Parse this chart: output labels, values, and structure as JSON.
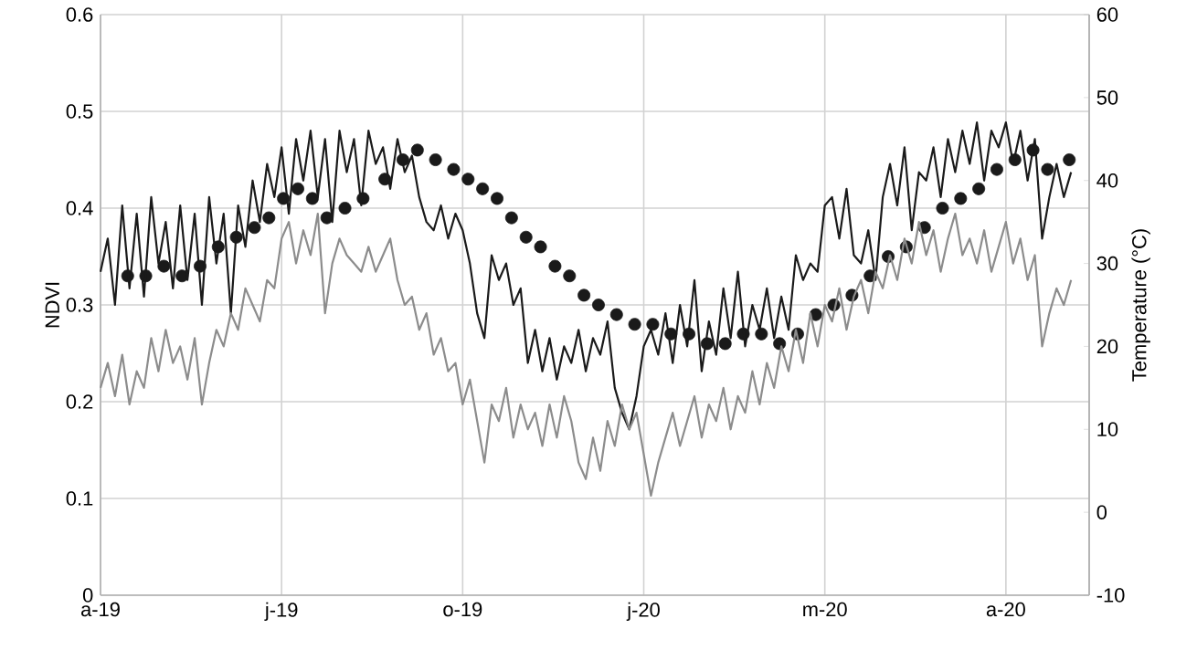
{
  "chart_data": {
    "type": "line",
    "ylabel": "NDVI",
    "y2label": "Temperature (°C)",
    "grid": true,
    "xlim": [
      "2019-04-01",
      "2020-09-28"
    ],
    "xticks": [
      {
        "value": "2019-04-01",
        "label": "a-19"
      },
      {
        "value": "2019-07-10",
        "label": "j-19"
      },
      {
        "value": "2019-10-18",
        "label": "o-19"
      },
      {
        "value": "2020-01-26",
        "label": "j-20"
      },
      {
        "value": "2020-05-05",
        "label": "m-20"
      },
      {
        "value": "2020-08-13",
        "label": "a-20"
      }
    ],
    "ylim": [
      0,
      0.6
    ],
    "yticks": [
      0,
      0.1,
      0.2,
      0.3,
      0.4,
      0.5,
      0.6
    ],
    "y2lim": [
      -10,
      60
    ],
    "y2ticks": [
      -10,
      0,
      10,
      20,
      30,
      40,
      50,
      60
    ],
    "series": [
      {
        "axis": "y2",
        "color": "#1a1a1a",
        "x": [
          "2019-04-01",
          "2019-04-05",
          "2019-04-09",
          "2019-04-13",
          "2019-04-17",
          "2019-04-21",
          "2019-04-25",
          "2019-04-29",
          "2019-05-03",
          "2019-05-07",
          "2019-05-11",
          "2019-05-15",
          "2019-05-19",
          "2019-05-23",
          "2019-05-27",
          "2019-05-31",
          "2019-06-04",
          "2019-06-08",
          "2019-06-12",
          "2019-06-16",
          "2019-06-20",
          "2019-06-24",
          "2019-06-28",
          "2019-07-02",
          "2019-07-06",
          "2019-07-10",
          "2019-07-14",
          "2019-07-18",
          "2019-07-22",
          "2019-07-26",
          "2019-07-30",
          "2019-08-03",
          "2019-08-07",
          "2019-08-11",
          "2019-08-15",
          "2019-08-19",
          "2019-08-23",
          "2019-08-27",
          "2019-08-31",
          "2019-09-04",
          "2019-09-08",
          "2019-09-12",
          "2019-09-16",
          "2019-09-20",
          "2019-09-24",
          "2019-09-28",
          "2019-10-02",
          "2019-10-06",
          "2019-10-10",
          "2019-10-14",
          "2019-10-18",
          "2019-10-22",
          "2019-10-26",
          "2019-10-30",
          "2019-11-03",
          "2019-11-07",
          "2019-11-11",
          "2019-11-15",
          "2019-11-19",
          "2019-11-23",
          "2019-11-27",
          "2019-12-01",
          "2019-12-05",
          "2019-12-09",
          "2019-12-13",
          "2019-12-17",
          "2019-12-21",
          "2019-12-25",
          "2019-12-29",
          "2020-01-02",
          "2020-01-06",
          "2020-01-10",
          "2020-01-14",
          "2020-01-18",
          "2020-01-22",
          "2020-01-26",
          "2020-01-30",
          "2020-02-03",
          "2020-02-07",
          "2020-02-11",
          "2020-02-15",
          "2020-02-19",
          "2020-02-23",
          "2020-02-27",
          "2020-03-02",
          "2020-03-06",
          "2020-03-10",
          "2020-03-14",
          "2020-03-18",
          "2020-03-22",
          "2020-03-26",
          "2020-03-30",
          "2020-04-03",
          "2020-04-07",
          "2020-04-11",
          "2020-04-15",
          "2020-04-19",
          "2020-04-23",
          "2020-04-27",
          "2020-05-01",
          "2020-05-05",
          "2020-05-09",
          "2020-05-13",
          "2020-05-17",
          "2020-05-21",
          "2020-05-25",
          "2020-05-29",
          "2020-06-02",
          "2020-06-06",
          "2020-06-10",
          "2020-06-14",
          "2020-06-18",
          "2020-06-22",
          "2020-06-26",
          "2020-06-30",
          "2020-07-04",
          "2020-07-08",
          "2020-07-12",
          "2020-07-16",
          "2020-07-20",
          "2020-07-24",
          "2020-07-28",
          "2020-08-01",
          "2020-08-05",
          "2020-08-09",
          "2020-08-13",
          "2020-08-17",
          "2020-08-21",
          "2020-08-25",
          "2020-08-29",
          "2020-09-02",
          "2020-09-06",
          "2020-09-10",
          "2020-09-14",
          "2020-09-18"
        ],
        "values": [
          29,
          33,
          25,
          37,
          27,
          36,
          26,
          38,
          30,
          35,
          27,
          37,
          28,
          36,
          25,
          38,
          30,
          36,
          24,
          37,
          32,
          40,
          35,
          42,
          38,
          44,
          36,
          45,
          40,
          46,
          38,
          45,
          35,
          46,
          41,
          45,
          37,
          46,
          42,
          44,
          39,
          45,
          41,
          43,
          38,
          35,
          34,
          37,
          33,
          36,
          34,
          30,
          24,
          21,
          31,
          28,
          30,
          25,
          27,
          18,
          22,
          17,
          21,
          16,
          20,
          18,
          22,
          17,
          21,
          19,
          23,
          15,
          12,
          10,
          14,
          20,
          22,
          19,
          24,
          18,
          25,
          20,
          28,
          17,
          23,
          19,
          27,
          21,
          29,
          20,
          25,
          22,
          27,
          21,
          26,
          22,
          31,
          28,
          30,
          29,
          37,
          38,
          33,
          39,
          31,
          30,
          34,
          28,
          38,
          42,
          37,
          44,
          34,
          41,
          40,
          44,
          38,
          45,
          41,
          46,
          42,
          47,
          40,
          46,
          44,
          47,
          42,
          46,
          40,
          45,
          33,
          38,
          42,
          38,
          41
        ]
      },
      {
        "axis": "y2",
        "color": "#8c8c8c",
        "x": [
          "2019-04-01",
          "2019-04-05",
          "2019-04-09",
          "2019-04-13",
          "2019-04-17",
          "2019-04-21",
          "2019-04-25",
          "2019-04-29",
          "2019-05-03",
          "2019-05-07",
          "2019-05-11",
          "2019-05-15",
          "2019-05-19",
          "2019-05-23",
          "2019-05-27",
          "2019-05-31",
          "2019-06-04",
          "2019-06-08",
          "2019-06-12",
          "2019-06-16",
          "2019-06-20",
          "2019-06-24",
          "2019-06-28",
          "2019-07-02",
          "2019-07-06",
          "2019-07-10",
          "2019-07-14",
          "2019-07-18",
          "2019-07-22",
          "2019-07-26",
          "2019-07-30",
          "2019-08-03",
          "2019-08-07",
          "2019-08-11",
          "2019-08-15",
          "2019-08-19",
          "2019-08-23",
          "2019-08-27",
          "2019-08-31",
          "2019-09-04",
          "2019-09-08",
          "2019-09-12",
          "2019-09-16",
          "2019-09-20",
          "2019-09-24",
          "2019-09-28",
          "2019-10-02",
          "2019-10-06",
          "2019-10-10",
          "2019-10-14",
          "2019-10-18",
          "2019-10-22",
          "2019-10-26",
          "2019-10-30",
          "2019-11-03",
          "2019-11-07",
          "2019-11-11",
          "2019-11-15",
          "2019-11-19",
          "2019-11-23",
          "2019-11-27",
          "2019-12-01",
          "2019-12-05",
          "2019-12-09",
          "2019-12-13",
          "2019-12-17",
          "2019-12-21",
          "2019-12-25",
          "2019-12-29",
          "2020-01-02",
          "2020-01-06",
          "2020-01-10",
          "2020-01-14",
          "2020-01-18",
          "2020-01-22",
          "2020-01-26",
          "2020-01-30",
          "2020-02-03",
          "2020-02-07",
          "2020-02-11",
          "2020-02-15",
          "2020-02-19",
          "2020-02-23",
          "2020-02-27",
          "2020-03-02",
          "2020-03-06",
          "2020-03-10",
          "2020-03-14",
          "2020-03-18",
          "2020-03-22",
          "2020-03-26",
          "2020-03-30",
          "2020-04-03",
          "2020-04-07",
          "2020-04-11",
          "2020-04-15",
          "2020-04-19",
          "2020-04-23",
          "2020-04-27",
          "2020-05-01",
          "2020-05-05",
          "2020-05-09",
          "2020-05-13",
          "2020-05-17",
          "2020-05-21",
          "2020-05-25",
          "2020-05-29",
          "2020-06-02",
          "2020-06-06",
          "2020-06-10",
          "2020-06-14",
          "2020-06-18",
          "2020-06-22",
          "2020-06-26",
          "2020-06-30",
          "2020-07-04",
          "2020-07-08",
          "2020-07-12",
          "2020-07-16",
          "2020-07-20",
          "2020-07-24",
          "2020-07-28",
          "2020-08-01",
          "2020-08-05",
          "2020-08-09",
          "2020-08-13",
          "2020-08-17",
          "2020-08-21",
          "2020-08-25",
          "2020-08-29",
          "2020-09-02",
          "2020-09-06",
          "2020-09-10",
          "2020-09-14",
          "2020-09-18"
        ],
        "values": [
          15,
          18,
          14,
          19,
          13,
          17,
          15,
          21,
          17,
          22,
          18,
          20,
          16,
          21,
          13,
          18,
          22,
          20,
          24,
          22,
          27,
          25,
          23,
          28,
          27,
          33,
          35,
          30,
          34,
          31,
          36,
          24,
          30,
          33,
          31,
          30,
          29,
          32,
          29,
          31,
          33,
          28,
          25,
          26,
          22,
          24,
          19,
          21,
          17,
          18,
          13,
          16,
          11,
          6,
          13,
          11,
          15,
          9,
          13,
          10,
          12,
          8,
          13,
          9,
          14,
          11,
          6,
          4,
          9,
          5,
          11,
          8,
          13,
          10,
          12,
          7,
          2,
          6,
          9,
          12,
          8,
          11,
          14,
          9,
          13,
          11,
          15,
          10,
          14,
          12,
          17,
          13,
          18,
          15,
          20,
          17,
          22,
          18,
          24,
          20,
          25,
          23,
          27,
          22,
          26,
          28,
          24,
          29,
          27,
          31,
          28,
          33,
          30,
          35,
          31,
          34,
          29,
          33,
          36,
          31,
          33,
          30,
          34,
          29,
          32,
          35,
          30,
          33,
          28,
          31,
          20,
          24,
          27,
          25,
          28
        ]
      },
      {
        "type": "scatter",
        "axis": "y",
        "marker": "circle",
        "color": "#1a1a1a",
        "x": [
          "2019-04-16",
          "2019-04-26",
          "2019-05-06",
          "2019-05-16",
          "2019-05-26",
          "2019-06-05",
          "2019-06-15",
          "2019-06-25",
          "2019-07-03",
          "2019-07-11",
          "2019-07-19",
          "2019-07-27",
          "2019-08-04",
          "2019-08-14",
          "2019-08-24",
          "2019-09-05",
          "2019-09-15",
          "2019-09-23",
          "2019-10-03",
          "2019-10-13",
          "2019-10-21",
          "2019-10-29",
          "2019-11-06",
          "2019-11-14",
          "2019-11-22",
          "2019-11-30",
          "2019-12-08",
          "2019-12-16",
          "2019-12-24",
          "2020-01-01",
          "2020-01-11",
          "2020-01-21",
          "2020-01-31",
          "2020-02-10",
          "2020-02-20",
          "2020-03-01",
          "2020-03-11",
          "2020-03-21",
          "2020-03-31",
          "2020-04-10",
          "2020-04-20",
          "2020-04-30",
          "2020-05-10",
          "2020-05-20",
          "2020-05-30",
          "2020-06-09",
          "2020-06-19",
          "2020-06-29",
          "2020-07-09",
          "2020-07-19",
          "2020-07-29",
          "2020-08-08",
          "2020-08-18",
          "2020-08-28",
          "2020-09-05",
          "2020-09-17"
        ],
        "values": [
          0.33,
          0.33,
          0.34,
          0.33,
          0.34,
          0.36,
          0.37,
          0.38,
          0.39,
          0.41,
          0.42,
          0.41,
          0.39,
          0.4,
          0.41,
          0.43,
          0.45,
          0.46,
          0.45,
          0.44,
          0.43,
          0.42,
          0.41,
          0.39,
          0.37,
          0.36,
          0.34,
          0.33,
          0.31,
          0.3,
          0.29,
          0.28,
          0.28,
          0.27,
          0.27,
          0.26,
          0.26,
          0.27,
          0.27,
          0.26,
          0.27,
          0.29,
          0.3,
          0.31,
          0.33,
          0.35,
          0.36,
          0.38,
          0.4,
          0.41,
          0.42,
          0.44,
          0.45,
          0.46,
          0.44,
          0.45
        ]
      }
    ]
  }
}
